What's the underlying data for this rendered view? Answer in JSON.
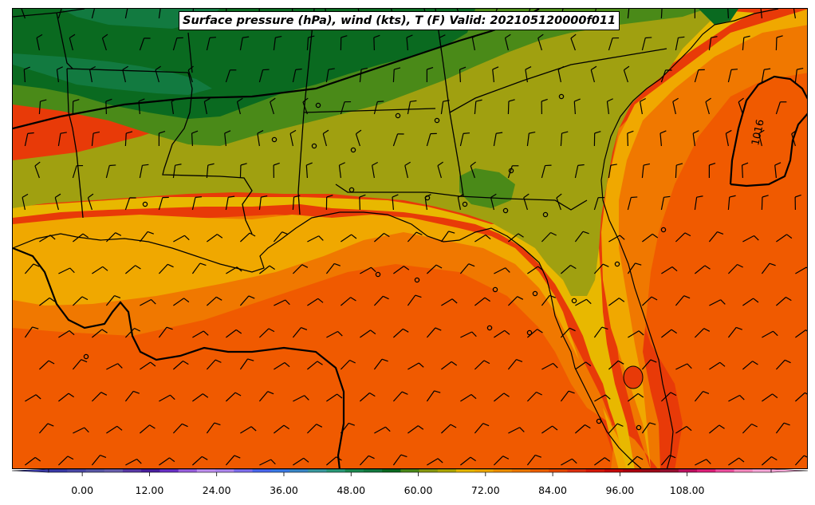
{
  "title": "Surface pressure (hPa), wind (kts), T (F) Valid: 202105120000f011",
  "isobar_label": "1016",
  "colorbar": {
    "tick_labels": [
      "0.00",
      "12.00",
      "24.00",
      "36.00",
      "48.00",
      "60.00",
      "72.00",
      "84.00",
      "96.00",
      "108.00"
    ],
    "min": -6,
    "max": 123,
    "colors": [
      "#3a3aa8",
      "#4a48a8",
      "#5a58a8",
      "#6a60b0",
      "#5a3aa8",
      "#4a20a0",
      "#6a30c8",
      "#9a60e0",
      "#c090f0",
      "#b088f0",
      "#8070f0",
      "#4a68f0",
      "#3a7ae8",
      "#3a88c8",
      "#3a9aa0",
      "#2a9a78",
      "#1a8a50",
      "#127a40",
      "#0a6a20",
      "#4a8a18",
      "#8a9a10",
      "#b0a800",
      "#e8b800",
      "#f0a800",
      "#f09000",
      "#f07800",
      "#f06000",
      "#e84800",
      "#e03010",
      "#d81808",
      "#c80808",
      "#b00010",
      "#a00818",
      "#9a1030",
      "#c01060",
      "#e0207a",
      "#f050a0",
      "#f88ac0",
      "#f8a8d8"
    ]
  },
  "map_colors": {
    "t45": "#127a40",
    "t48": "#0a6a20",
    "t57": "#4a8a18",
    "t60": "#a0a010",
    "t66": "#e8b800",
    "t69": "#f0a800",
    "t72": "#f07800",
    "t75": "#f05a00",
    "t78": "#e83a08"
  }
}
